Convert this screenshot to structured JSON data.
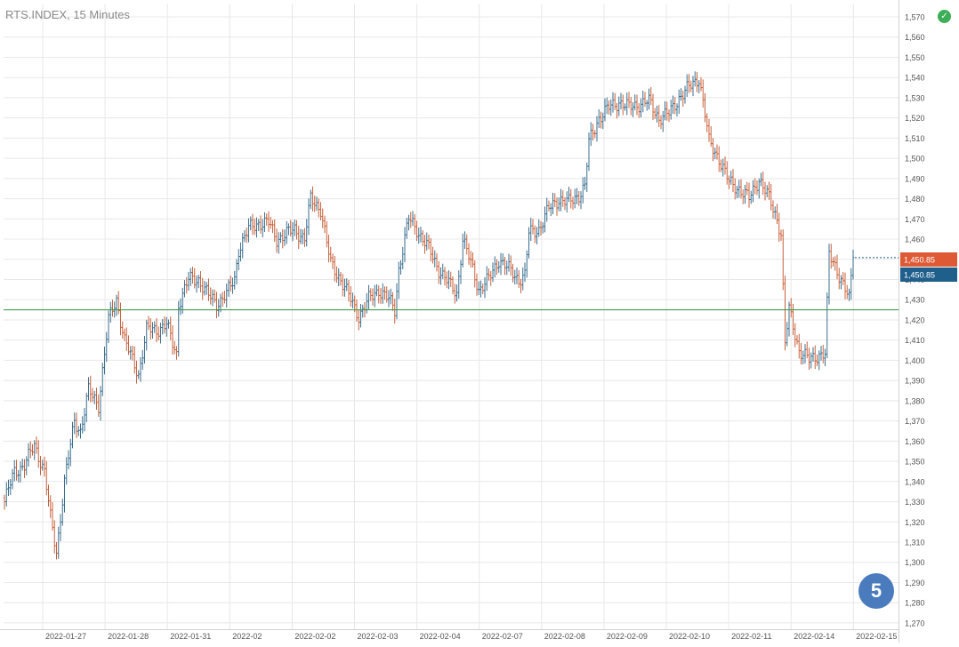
{
  "header": {
    "symbol_title": "RTS.INDEX, 15 Minutes"
  },
  "status_icon": "check-circle-icon",
  "page_badge": "5",
  "chart_data": {
    "type": "ohlc",
    "title": "RTS.INDEX, 15 Minutes",
    "ylim": [
      1265,
      1573
    ],
    "y_ticks": [
      "1,570",
      "1,560",
      "1,550",
      "1,540",
      "1,530",
      "1,520",
      "1,510",
      "1,500",
      "1,490",
      "1,480",
      "1,470",
      "1,460",
      "1,450",
      "1,440",
      "1,430",
      "1,420",
      "1,410",
      "1,400",
      "1,390",
      "1,380",
      "1,370",
      "1,360",
      "1,350",
      "1,340",
      "1,330",
      "1,320",
      "1,310",
      "1,300",
      "1,290",
      "1,280",
      "1,270"
    ],
    "x_ticks": [
      "2022-01-27",
      "2022-01-28",
      "2022-01-31",
      "2022-02",
      "2022-02-02",
      "2022-02-03",
      "2022-02-04",
      "2022-02-07",
      "2022-02-08",
      "2022-02-09",
      "2022-02-10",
      "2022-02-11",
      "2022-02-14",
      "2022-02-15"
    ],
    "grid": true,
    "colors": {
      "up": "#3a6f8f",
      "down": "#c8603a",
      "grid": "#e8e8e8",
      "hline": "#2e9a3a",
      "axis_text": "#555555"
    },
    "horizontal_line": 1425,
    "price_labels": [
      {
        "value": "1,450.85",
        "color": "#dd5a35"
      },
      {
        "value": "1,450.85",
        "color": "#1f5f8b"
      }
    ],
    "last_price": 1450.85,
    "waypoints": [
      [
        0,
        1330
      ],
      [
        5,
        1345
      ],
      [
        10,
        1348
      ],
      [
        15,
        1358
      ],
      [
        20,
        1345
      ],
      [
        23,
        1322
      ],
      [
        26,
        1305
      ],
      [
        30,
        1340
      ],
      [
        35,
        1370
      ],
      [
        38,
        1365
      ],
      [
        42,
        1385
      ],
      [
        47,
        1378
      ],
      [
        52,
        1420
      ],
      [
        56,
        1430
      ],
      [
        60,
        1410
      ],
      [
        64,
        1400
      ],
      [
        67,
        1393
      ],
      [
        71,
        1415
      ],
      [
        76,
        1415
      ],
      [
        81,
        1418
      ],
      [
        84,
        1408
      ],
      [
        86,
        1403
      ],
      [
        87,
        1428
      ],
      [
        92,
        1440
      ],
      [
        97,
        1440
      ],
      [
        102,
        1432
      ],
      [
        106,
        1428
      ],
      [
        111,
        1433
      ],
      [
        115,
        1440
      ],
      [
        117,
        1455
      ],
      [
        122,
        1465
      ],
      [
        127,
        1468
      ],
      [
        132,
        1468
      ],
      [
        136,
        1460
      ],
      [
        140,
        1462
      ],
      [
        145,
        1465
      ],
      [
        150,
        1460
      ],
      [
        153,
        1480
      ],
      [
        158,
        1475
      ],
      [
        161,
        1458
      ],
      [
        163,
        1448
      ],
      [
        168,
        1440
      ],
      [
        173,
        1430
      ],
      [
        177,
        1422
      ],
      [
        182,
        1430
      ],
      [
        187,
        1435
      ],
      [
        192,
        1430
      ],
      [
        195,
        1425
      ],
      [
        197,
        1445
      ],
      [
        202,
        1470
      ],
      [
        206,
        1465
      ],
      [
        212,
        1455
      ],
      [
        217,
        1445
      ],
      [
        222,
        1438
      ],
      [
        226,
        1433
      ],
      [
        229,
        1460
      ],
      [
        234,
        1445
      ],
      [
        237,
        1435
      ],
      [
        242,
        1440
      ],
      [
        247,
        1450
      ],
      [
        252,
        1445
      ],
      [
        257,
        1440
      ],
      [
        260,
        1442
      ],
      [
        262,
        1463
      ],
      [
        267,
        1465
      ],
      [
        272,
        1475
      ],
      [
        277,
        1480
      ],
      [
        282,
        1478
      ],
      [
        287,
        1482
      ],
      [
        290,
        1486
      ],
      [
        292,
        1508
      ],
      [
        297,
        1520
      ],
      [
        302,
        1525
      ],
      [
        307,
        1528
      ],
      [
        312,
        1525
      ],
      [
        317,
        1527
      ],
      [
        322,
        1528
      ],
      [
        327,
        1520
      ],
      [
        332,
        1522
      ],
      [
        337,
        1530
      ],
      [
        342,
        1535
      ],
      [
        347,
        1540
      ],
      [
        350,
        1522
      ],
      [
        352,
        1508
      ],
      [
        357,
        1500
      ],
      [
        362,
        1488
      ],
      [
        367,
        1485
      ],
      [
        372,
        1480
      ],
      [
        377,
        1490
      ],
      [
        382,
        1480
      ],
      [
        386,
        1470
      ],
      [
        388,
        1463
      ],
      [
        390,
        1408
      ],
      [
        392,
        1425
      ],
      [
        397,
        1405
      ],
      [
        402,
        1400
      ],
      [
        407,
        1403
      ],
      [
        410,
        1403
      ],
      [
        412,
        1452
      ],
      [
        415,
        1447
      ],
      [
        418,
        1440
      ],
      [
        422,
        1430
      ],
      [
        424,
        1450.85
      ]
    ]
  }
}
